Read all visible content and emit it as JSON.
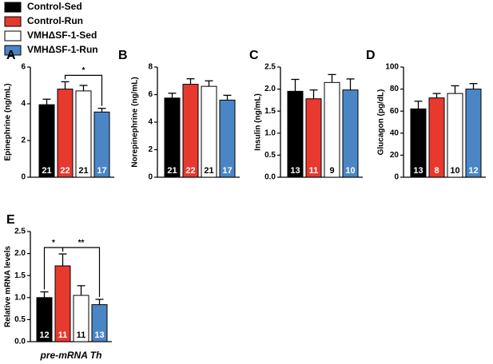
{
  "legend": [
    {
      "name": "Control-Sed",
      "color": "#000000"
    },
    {
      "name": "Control-Run",
      "color": "#e8392e"
    },
    {
      "name": "VMHΔSF-1-Sed",
      "color": "#ffffff"
    },
    {
      "name": "VMHΔSF-1-Run",
      "color": "#4a86c5"
    }
  ],
  "chart_data": [
    {
      "type": "bar",
      "panel": "A",
      "ylabel": "Epinephrine (ng/mL)",
      "values": [
        3.95,
        4.8,
        4.7,
        3.55
      ],
      "errors": [
        0.3,
        0.4,
        0.3,
        0.2
      ],
      "n": [
        21,
        22,
        21,
        17
      ],
      "ylim": [
        0,
        6
      ],
      "yticks": [
        0,
        2,
        4,
        6
      ],
      "annotations": [
        {
          "text": "*",
          "bars": [
            1,
            3
          ]
        }
      ]
    },
    {
      "type": "bar",
      "panel": "B",
      "ylabel": "Norepinephrine (ng/mL)",
      "values": [
        5.75,
        6.75,
        6.6,
        5.6
      ],
      "errors": [
        0.35,
        0.4,
        0.4,
        0.35
      ],
      "n": [
        21,
        22,
        21,
        17
      ],
      "ylim": [
        0,
        8
      ],
      "yticks": [
        0,
        2,
        4,
        6,
        8
      ]
    },
    {
      "type": "bar",
      "panel": "C",
      "ylabel": "Insulin (ng/mL)",
      "values": [
        1.95,
        1.78,
        2.15,
        1.98
      ],
      "errors": [
        0.27,
        0.2,
        0.18,
        0.25
      ],
      "n": [
        13,
        11,
        9,
        10
      ],
      "ylim": [
        0,
        2.5
      ],
      "yticks": [
        {
          "value": 0,
          "label": "0.0"
        },
        0.5,
        {
          "value": 1,
          "label": "1.0"
        },
        1.5,
        {
          "value": 2,
          "label": "2.0"
        },
        2.5
      ]
    },
    {
      "type": "bar",
      "panel": "D",
      "ylabel": "Glucagon (pg/dL)",
      "values": [
        62,
        72,
        76,
        80
      ],
      "errors": [
        7,
        4,
        7,
        5
      ],
      "n": [
        13,
        8,
        10,
        12
      ],
      "ylim": [
        0,
        100
      ],
      "yticks": [
        0,
        20,
        40,
        60,
        80,
        100
      ]
    },
    {
      "type": "bar",
      "panel": "E",
      "ylabel": "Relative mRNA levels",
      "xlabel": "pre-mRNA Th",
      "values": [
        1.0,
        1.72,
        1.05,
        0.84
      ],
      "errors": [
        0.13,
        0.27,
        0.22,
        0.12
      ],
      "n": [
        12,
        11,
        11,
        13
      ],
      "ylim": [
        0,
        2.5
      ],
      "yticks": [
        {
          "value": 0,
          "label": "0.0"
        },
        0.5,
        {
          "value": 1,
          "label": "1.0"
        },
        1.5,
        {
          "value": 2,
          "label": "2.0"
        },
        2.5
      ],
      "annotations": [
        {
          "text": "*",
          "bars": [
            0,
            1
          ]
        },
        {
          "text": "**",
          "bars": [
            1,
            3
          ]
        }
      ]
    }
  ]
}
